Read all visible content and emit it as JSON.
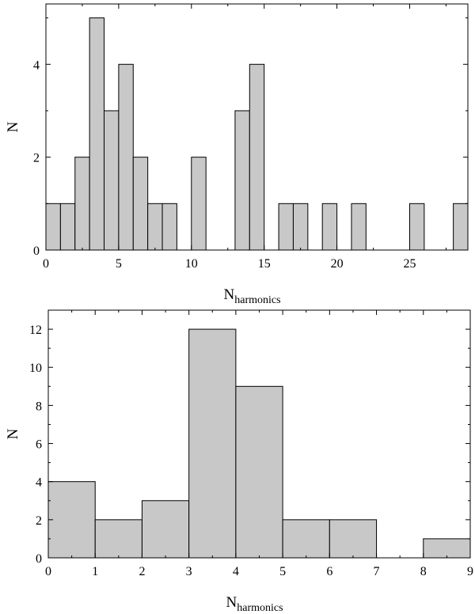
{
  "chart_data": [
    {
      "type": "bar",
      "subtype": "histogram",
      "xlabel": "N",
      "xlabel_sub": "harmonics",
      "ylabel": "N",
      "xlim": [
        0,
        29
      ],
      "ylim": [
        0,
        5.3
      ],
      "x_ticks": [
        0,
        5,
        10,
        15,
        20,
        25
      ],
      "y_ticks": [
        0,
        2,
        4
      ],
      "bin_width": 1,
      "bins": [
        {
          "x0": 0,
          "x1": 1,
          "value": 1
        },
        {
          "x0": 1,
          "x1": 2,
          "value": 1
        },
        {
          "x0": 2,
          "x1": 3,
          "value": 2
        },
        {
          "x0": 3,
          "x1": 4,
          "value": 5
        },
        {
          "x0": 4,
          "x1": 5,
          "value": 3
        },
        {
          "x0": 5,
          "x1": 6,
          "value": 4
        },
        {
          "x0": 6,
          "x1": 7,
          "value": 2
        },
        {
          "x0": 7,
          "x1": 8,
          "value": 1
        },
        {
          "x0": 8,
          "x1": 9,
          "value": 1
        },
        {
          "x0": 10,
          "x1": 11,
          "value": 2
        },
        {
          "x0": 13,
          "x1": 14,
          "value": 3
        },
        {
          "x0": 14,
          "x1": 15,
          "value": 4
        },
        {
          "x0": 16,
          "x1": 17,
          "value": 1
        },
        {
          "x0": 17,
          "x1": 18,
          "value": 1
        },
        {
          "x0": 19,
          "x1": 20,
          "value": 1
        },
        {
          "x0": 21,
          "x1": 22,
          "value": 1
        },
        {
          "x0": 25,
          "x1": 26,
          "value": 1
        },
        {
          "x0": 28,
          "x1": 29,
          "value": 1
        }
      ],
      "bar_color": "#c8c8c8",
      "grid": false
    },
    {
      "type": "bar",
      "subtype": "histogram",
      "xlabel": "N",
      "xlabel_sub": "harmonics",
      "ylabel": "N",
      "xlim": [
        0,
        9
      ],
      "ylim": [
        0,
        13
      ],
      "x_ticks": [
        0,
        1,
        2,
        3,
        4,
        5,
        6,
        7,
        8,
        9
      ],
      "y_ticks": [
        0,
        2,
        4,
        6,
        8,
        10,
        12
      ],
      "bin_width": 1,
      "bins": [
        {
          "x0": 0,
          "x1": 1,
          "value": 4
        },
        {
          "x0": 1,
          "x1": 2,
          "value": 2
        },
        {
          "x0": 2,
          "x1": 3,
          "value": 3
        },
        {
          "x0": 3,
          "x1": 4,
          "value": 12
        },
        {
          "x0": 4,
          "x1": 5,
          "value": 9
        },
        {
          "x0": 5,
          "x1": 6,
          "value": 2
        },
        {
          "x0": 6,
          "x1": 7,
          "value": 2
        },
        {
          "x0": 8,
          "x1": 9,
          "value": 1
        }
      ],
      "bar_color": "#c8c8c8",
      "grid": false
    }
  ]
}
